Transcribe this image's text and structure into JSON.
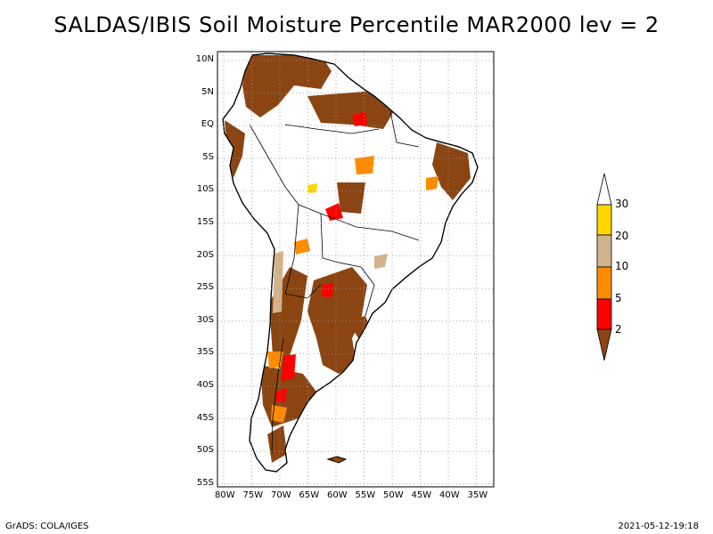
{
  "title": "SALDAS/IBIS Soil Moisture Percentile MAR2000 lev = 2",
  "map": {
    "region": "South America",
    "lat_ticks": [
      "10N",
      "5N",
      "EQ",
      "5S",
      "10S",
      "15S",
      "20S",
      "25S",
      "30S",
      "35S",
      "40S",
      "45S",
      "50S",
      "55S"
    ],
    "lon_ticks": [
      "80W",
      "75W",
      "70W",
      "65W",
      "60W",
      "55W",
      "50W",
      "45W",
      "40W",
      "35W"
    ],
    "grid": true
  },
  "colorbar": {
    "labels": [
      "30",
      "20",
      "10",
      "5",
      "2"
    ],
    "colors": {
      "above_30": "#ffffff",
      "20_30": "#ffd700",
      "10_20": "#d2b48c",
      "5_10": "#ff8c00",
      "2_5": "#ff0000",
      "below_2": "#8b4513"
    }
  },
  "footer": {
    "left": "GrADS: COLA/IGES",
    "right": "2021-05-12-19:18"
  }
}
